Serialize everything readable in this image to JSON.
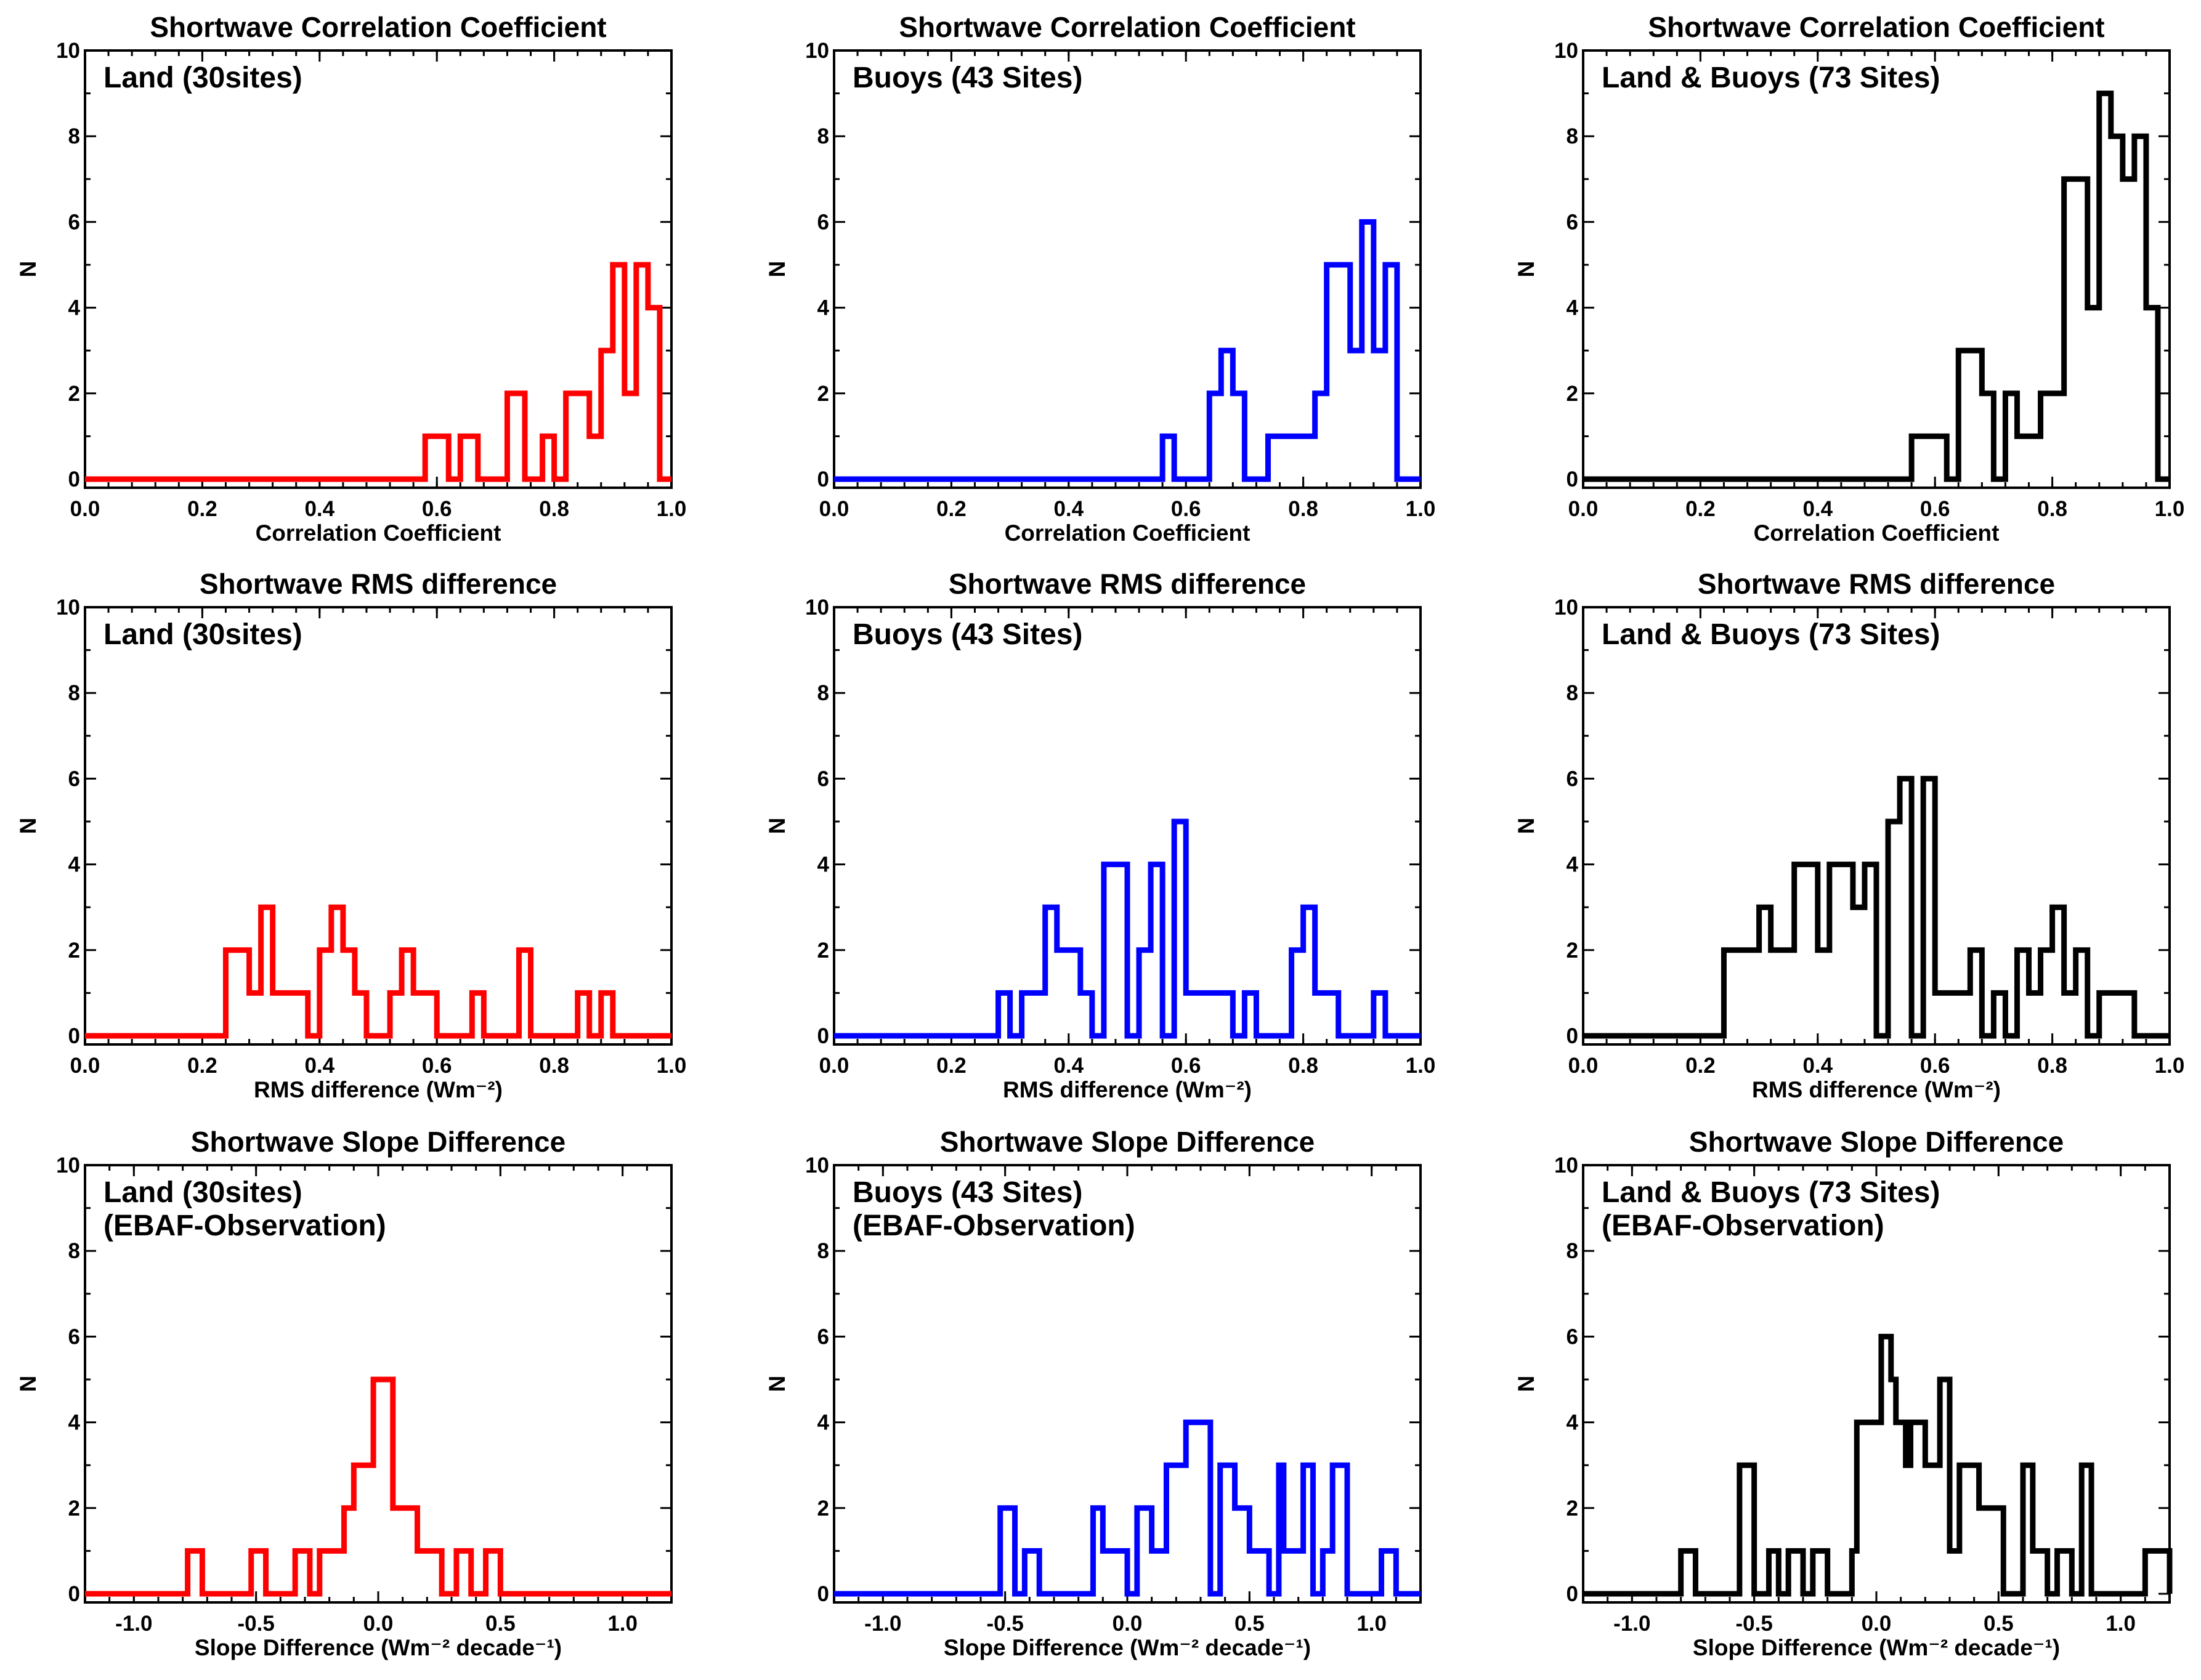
{
  "colors": {
    "land": "#ff0000",
    "buoys": "#0000ff",
    "combined": "#000000"
  },
  "panels": [
    {
      "title": "Shortwave Correlation Coefficient",
      "inset": [
        "Land (30sites)"
      ],
      "xlabel": "Correlation Coefficient",
      "ylabel": "N",
      "xlim": [
        0.0,
        1.0
      ],
      "ylim": [
        0,
        10
      ],
      "xticks": [
        0.0,
        0.2,
        0.4,
        0.6,
        0.8,
        1.0
      ],
      "xtick_labels": [
        "0.0",
        "0.2",
        "0.4",
        "0.6",
        "0.8",
        "1.0"
      ],
      "yticks": [
        0,
        2,
        4,
        6,
        8,
        10
      ],
      "ytick_labels": [
        "0",
        "2",
        "4",
        "6",
        "8",
        "10"
      ],
      "color": "#ff0000",
      "series": {
        "x": [
          0.0,
          0.58,
          0.62,
          0.64,
          0.67,
          0.72,
          0.75,
          0.78,
          0.8,
          0.82,
          0.86,
          0.88,
          0.9,
          0.92,
          0.94,
          0.96,
          0.98,
          0.98
        ],
        "y": [
          0,
          1,
          0,
          1,
          0,
          2,
          0,
          1,
          0,
          2,
          1,
          3,
          5,
          2,
          5,
          4,
          0,
          0
        ]
      }
    },
    {
      "title": "Shortwave Correlation Coefficient",
      "inset": [
        "Buoys (43 Sites)"
      ],
      "xlabel": "Correlation Coefficient",
      "ylabel": "N",
      "xlim": [
        0.0,
        1.0
      ],
      "ylim": [
        0,
        10
      ],
      "xticks": [
        0.0,
        0.2,
        0.4,
        0.6,
        0.8,
        1.0
      ],
      "xtick_labels": [
        "0.0",
        "0.2",
        "0.4",
        "0.6",
        "0.8",
        "1.0"
      ],
      "yticks": [
        0,
        2,
        4,
        6,
        8,
        10
      ],
      "ytick_labels": [
        "0",
        "2",
        "4",
        "6",
        "8",
        "10"
      ],
      "color": "#0000ff",
      "series": {
        "x": [
          0.0,
          0.56,
          0.58,
          0.6,
          0.64,
          0.66,
          0.68,
          0.7,
          0.74,
          0.8,
          0.82,
          0.84,
          0.88,
          0.9,
          0.92,
          0.94,
          0.96,
          0.96
        ],
        "y": [
          0,
          1,
          0,
          0,
          2,
          3,
          2,
          0,
          1,
          1,
          2,
          5,
          3,
          6,
          3,
          5,
          3,
          0
        ]
      }
    },
    {
      "title": "Shortwave Correlation Coefficient",
      "inset": [
        "Land & Buoys (73 Sites)"
      ],
      "xlabel": "Correlation Coefficient",
      "ylabel": "N",
      "xlim": [
        0.0,
        1.0
      ],
      "ylim": [
        0,
        10
      ],
      "xticks": [
        0.0,
        0.2,
        0.4,
        0.6,
        0.8,
        1.0
      ],
      "xtick_labels": [
        "0.0",
        "0.2",
        "0.4",
        "0.6",
        "0.8",
        "1.0"
      ],
      "yticks": [
        0,
        2,
        4,
        6,
        8,
        10
      ],
      "ytick_labels": [
        "0",
        "2",
        "4",
        "6",
        "8",
        "10"
      ],
      "color": "#000000",
      "series": {
        "x": [
          0.0,
          0.56,
          0.62,
          0.64,
          0.68,
          0.7,
          0.72,
          0.74,
          0.78,
          0.82,
          0.86,
          0.88,
          0.9,
          0.92,
          0.94,
          0.96,
          0.98,
          0.98
        ],
        "y": [
          0,
          1,
          0,
          3,
          2,
          0,
          2,
          1,
          2,
          7,
          4,
          9,
          8,
          7,
          8,
          4,
          0,
          0
        ]
      }
    },
    {
      "title": "Shortwave RMS difference",
      "inset": [
        "Land (30sites)"
      ],
      "xlabel": "RMS difference (Wm⁻²)",
      "ylabel": "N",
      "xlim": [
        0.0,
        1.0
      ],
      "ylim": [
        0,
        10
      ],
      "xticks": [
        0.0,
        0.2,
        0.4,
        0.6,
        0.8,
        1.0
      ],
      "xtick_labels": [
        "0.0",
        "0.2",
        "0.4",
        "0.6",
        "0.8",
        "1.0"
      ],
      "yticks": [
        0,
        2,
        4,
        6,
        8,
        10
      ],
      "ytick_labels": [
        "0",
        "2",
        "4",
        "6",
        "8",
        "10"
      ],
      "color": "#ff0000",
      "series": {
        "x": [
          0.0,
          0.24,
          0.28,
          0.3,
          0.32,
          0.38,
          0.4,
          0.42,
          0.44,
          0.46,
          0.48,
          0.52,
          0.54,
          0.56,
          0.6,
          0.66,
          0.68,
          0.74,
          0.76,
          0.84,
          0.86,
          0.88,
          0.9,
          0.94,
          1.0
        ],
        "y": [
          0,
          2,
          1,
          3,
          1,
          0,
          2,
          3,
          2,
          1,
          0,
          1,
          2,
          1,
          0,
          1,
          0,
          2,
          0,
          1,
          0,
          1,
          0,
          0,
          0
        ]
      }
    },
    {
      "title": "Shortwave RMS difference",
      "inset": [
        "Buoys (43 Sites)"
      ],
      "xlabel": "RMS difference (Wm⁻²)",
      "ylabel": "N",
      "xlim": [
        0.0,
        1.0
      ],
      "ylim": [
        0,
        10
      ],
      "xticks": [
        0.0,
        0.2,
        0.4,
        0.6,
        0.8,
        1.0
      ],
      "xtick_labels": [
        "0.0",
        "0.2",
        "0.4",
        "0.6",
        "0.8",
        "1.0"
      ],
      "yticks": [
        0,
        2,
        4,
        6,
        8,
        10
      ],
      "ytick_labels": [
        "0",
        "2",
        "4",
        "6",
        "8",
        "10"
      ],
      "color": "#0000ff",
      "series": {
        "x": [
          0.0,
          0.28,
          0.3,
          0.32,
          0.36,
          0.38,
          0.42,
          0.44,
          0.46,
          0.5,
          0.52,
          0.54,
          0.56,
          0.58,
          0.6,
          0.68,
          0.7,
          0.72,
          0.78,
          0.8,
          0.82,
          0.86,
          0.92,
          0.94,
          0.96
        ],
        "y": [
          0,
          1,
          0,
          1,
          3,
          2,
          1,
          0,
          4,
          0,
          2,
          4,
          0,
          5,
          1,
          0,
          1,
          0,
          2,
          3,
          1,
          0,
          1,
          0,
          0
        ]
      }
    },
    {
      "title": "Shortwave RMS difference",
      "inset": [
        "Land & Buoys (73 Sites)"
      ],
      "xlabel": "RMS difference (Wm⁻²)",
      "ylabel": "N",
      "xlim": [
        0.0,
        1.0
      ],
      "ylim": [
        0,
        10
      ],
      "xticks": [
        0.0,
        0.2,
        0.4,
        0.6,
        0.8,
        1.0
      ],
      "xtick_labels": [
        "0.0",
        "0.2",
        "0.4",
        "0.6",
        "0.8",
        "1.0"
      ],
      "yticks": [
        0,
        2,
        4,
        6,
        8,
        10
      ],
      "ytick_labels": [
        "0",
        "2",
        "4",
        "6",
        "8",
        "10"
      ],
      "color": "#000000",
      "series": {
        "x": [
          0.0,
          0.24,
          0.3,
          0.32,
          0.36,
          0.4,
          0.42,
          0.46,
          0.48,
          0.5,
          0.52,
          0.54,
          0.56,
          0.58,
          0.6,
          0.66,
          0.68,
          0.7,
          0.72,
          0.74,
          0.76,
          0.78,
          0.8,
          0.82,
          0.84,
          0.86,
          0.88,
          0.94,
          1.0
        ],
        "y": [
          0,
          2,
          3,
          2,
          4,
          2,
          4,
          3,
          4,
          0,
          5,
          6,
          0,
          6,
          1,
          2,
          0,
          1,
          0,
          2,
          1,
          2,
          3,
          1,
          2,
          0,
          1,
          0,
          0
        ]
      }
    },
    {
      "title": "Shortwave Slope Difference",
      "inset": [
        "Land (30sites)",
        "(EBAF-Observation)"
      ],
      "xlabel": "Slope Difference (Wm⁻² decade⁻¹)",
      "ylabel": "N",
      "xlim": [
        -1.2,
        1.2
      ],
      "ylim": [
        0,
        10
      ],
      "xticks": [
        -1.0,
        -0.5,
        0.0,
        0.5,
        1.0
      ],
      "xtick_labels": [
        "-1.0",
        "-0.5",
        "0.0",
        "0.5",
        "1.0"
      ],
      "yticks": [
        0,
        2,
        4,
        6,
        8,
        10
      ],
      "ytick_labels": [
        "0",
        "2",
        "4",
        "6",
        "8",
        "10"
      ],
      "color": "#ff0000",
      "series": {
        "x": [
          -1.2,
          -0.78,
          -0.72,
          -0.52,
          -0.46,
          -0.34,
          -0.28,
          -0.24,
          -0.14,
          -0.1,
          -0.02,
          0.06,
          0.16,
          0.26,
          0.32,
          0.38,
          0.44,
          0.5,
          1.2
        ],
        "y": [
          0,
          1,
          0,
          1,
          0,
          1,
          0,
          1,
          2,
          3,
          5,
          2,
          1,
          0,
          1,
          0,
          1,
          0,
          0
        ]
      }
    },
    {
      "title": "Shortwave Slope Difference",
      "inset": [
        "Buoys (43 Sites)",
        "(EBAF-Observation)"
      ],
      "xlabel": "Slope Difference (Wm⁻² decade⁻¹)",
      "ylabel": "N",
      "xlim": [
        -1.2,
        1.2
      ],
      "ylim": [
        0,
        10
      ],
      "xticks": [
        -1.0,
        -0.5,
        0.0,
        0.5,
        1.0
      ],
      "xtick_labels": [
        "-1.0",
        "-0.5",
        "0.0",
        "0.5",
        "1.0"
      ],
      "yticks": [
        0,
        2,
        4,
        6,
        8,
        10
      ],
      "ytick_labels": [
        "0",
        "2",
        "4",
        "6",
        "8",
        "10"
      ],
      "color": "#0000ff",
      "series": {
        "x": [
          -1.2,
          -0.52,
          -0.46,
          -0.42,
          -0.36,
          -0.14,
          -0.1,
          0.0,
          0.04,
          0.1,
          0.16,
          0.24,
          0.34,
          0.38,
          0.44,
          0.5,
          0.58,
          0.62,
          0.64,
          0.72,
          0.76,
          0.8,
          0.84,
          0.9,
          1.04,
          1.1,
          1.2
        ],
        "y": [
          0,
          2,
          0,
          1,
          0,
          2,
          1,
          0,
          2,
          1,
          3,
          4,
          0,
          3,
          2,
          1,
          0,
          3,
          1,
          3,
          0,
          1,
          3,
          0,
          1,
          0,
          0
        ]
      }
    },
    {
      "title": "Shortwave Slope Difference",
      "inset": [
        "Land & Buoys (73 Sites)",
        "(EBAF-Observation)"
      ],
      "xlabel": "Slope Difference (Wm⁻² decade⁻¹)",
      "ylabel": "N",
      "xlim": [
        -1.2,
        1.2
      ],
      "ylim": [
        0,
        10
      ],
      "xticks": [
        -1.0,
        -0.5,
        0.0,
        0.5,
        1.0
      ],
      "xtick_labels": [
        "-1.0",
        "-0.5",
        "0.0",
        "0.5",
        "1.0"
      ],
      "yticks": [
        0,
        2,
        4,
        6,
        8,
        10
      ],
      "ytick_labels": [
        "0",
        "2",
        "4",
        "6",
        "8",
        "10"
      ],
      "color": "#000000",
      "series": {
        "x": [
          -1.2,
          -0.8,
          -0.74,
          -0.56,
          -0.5,
          -0.44,
          -0.4,
          -0.36,
          -0.3,
          -0.26,
          -0.2,
          -0.1,
          -0.08,
          0.02,
          0.06,
          0.08,
          0.12,
          0.14,
          0.2,
          0.26,
          0.3,
          0.34,
          0.42,
          0.48,
          0.52,
          0.6,
          0.64,
          0.7,
          0.74,
          0.8,
          0.84,
          0.88,
          1.04,
          1.1,
          1.2
        ],
        "y": [
          0,
          1,
          0,
          3,
          0,
          1,
          0,
          1,
          0,
          1,
          0,
          1,
          4,
          6,
          5,
          4,
          3,
          4,
          3,
          5,
          1,
          3,
          2,
          2,
          0,
          3,
          1,
          0,
          1,
          0,
          3,
          0,
          0,
          1,
          0
        ]
      }
    }
  ]
}
